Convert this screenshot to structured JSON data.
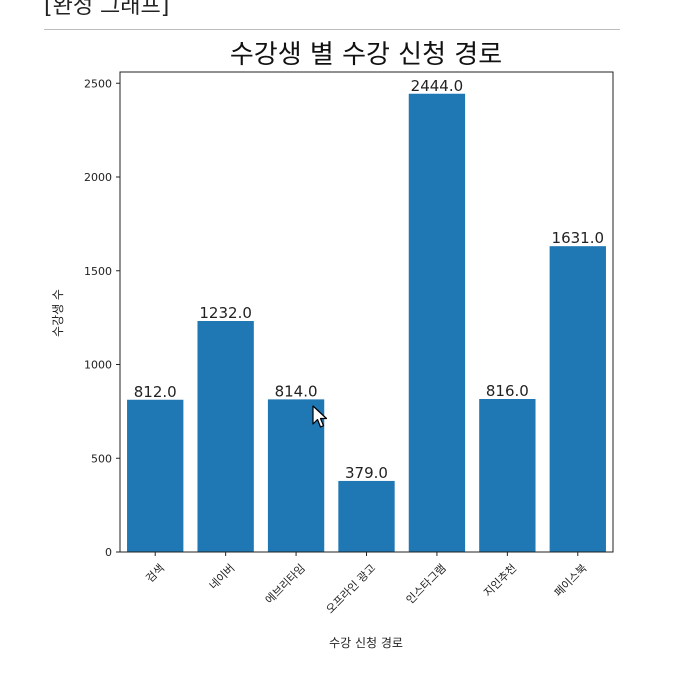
{
  "section_heading": "[완성 그래프]",
  "chart_data": {
    "type": "bar",
    "title": "수강생 별 수강 신청 경로",
    "xlabel": "수강 신청 경로",
    "ylabel": "수강생 수",
    "categories": [
      "검색",
      "네이버",
      "에브리타임",
      "오프라인 광고",
      "인스타그램",
      "지인추천",
      "페이스북"
    ],
    "values": [
      812,
      1232,
      814,
      379,
      2444,
      816,
      1631
    ],
    "value_labels": [
      "812.0",
      "1232.0",
      "814.0",
      "379.0",
      "2444.0",
      "816.0",
      "1631.0"
    ],
    "ylim": [
      0,
      2560
    ],
    "yticks": [
      0,
      500,
      1000,
      1500,
      2000,
      2500
    ],
    "grid": false,
    "bar_color": "#1f77b4"
  }
}
